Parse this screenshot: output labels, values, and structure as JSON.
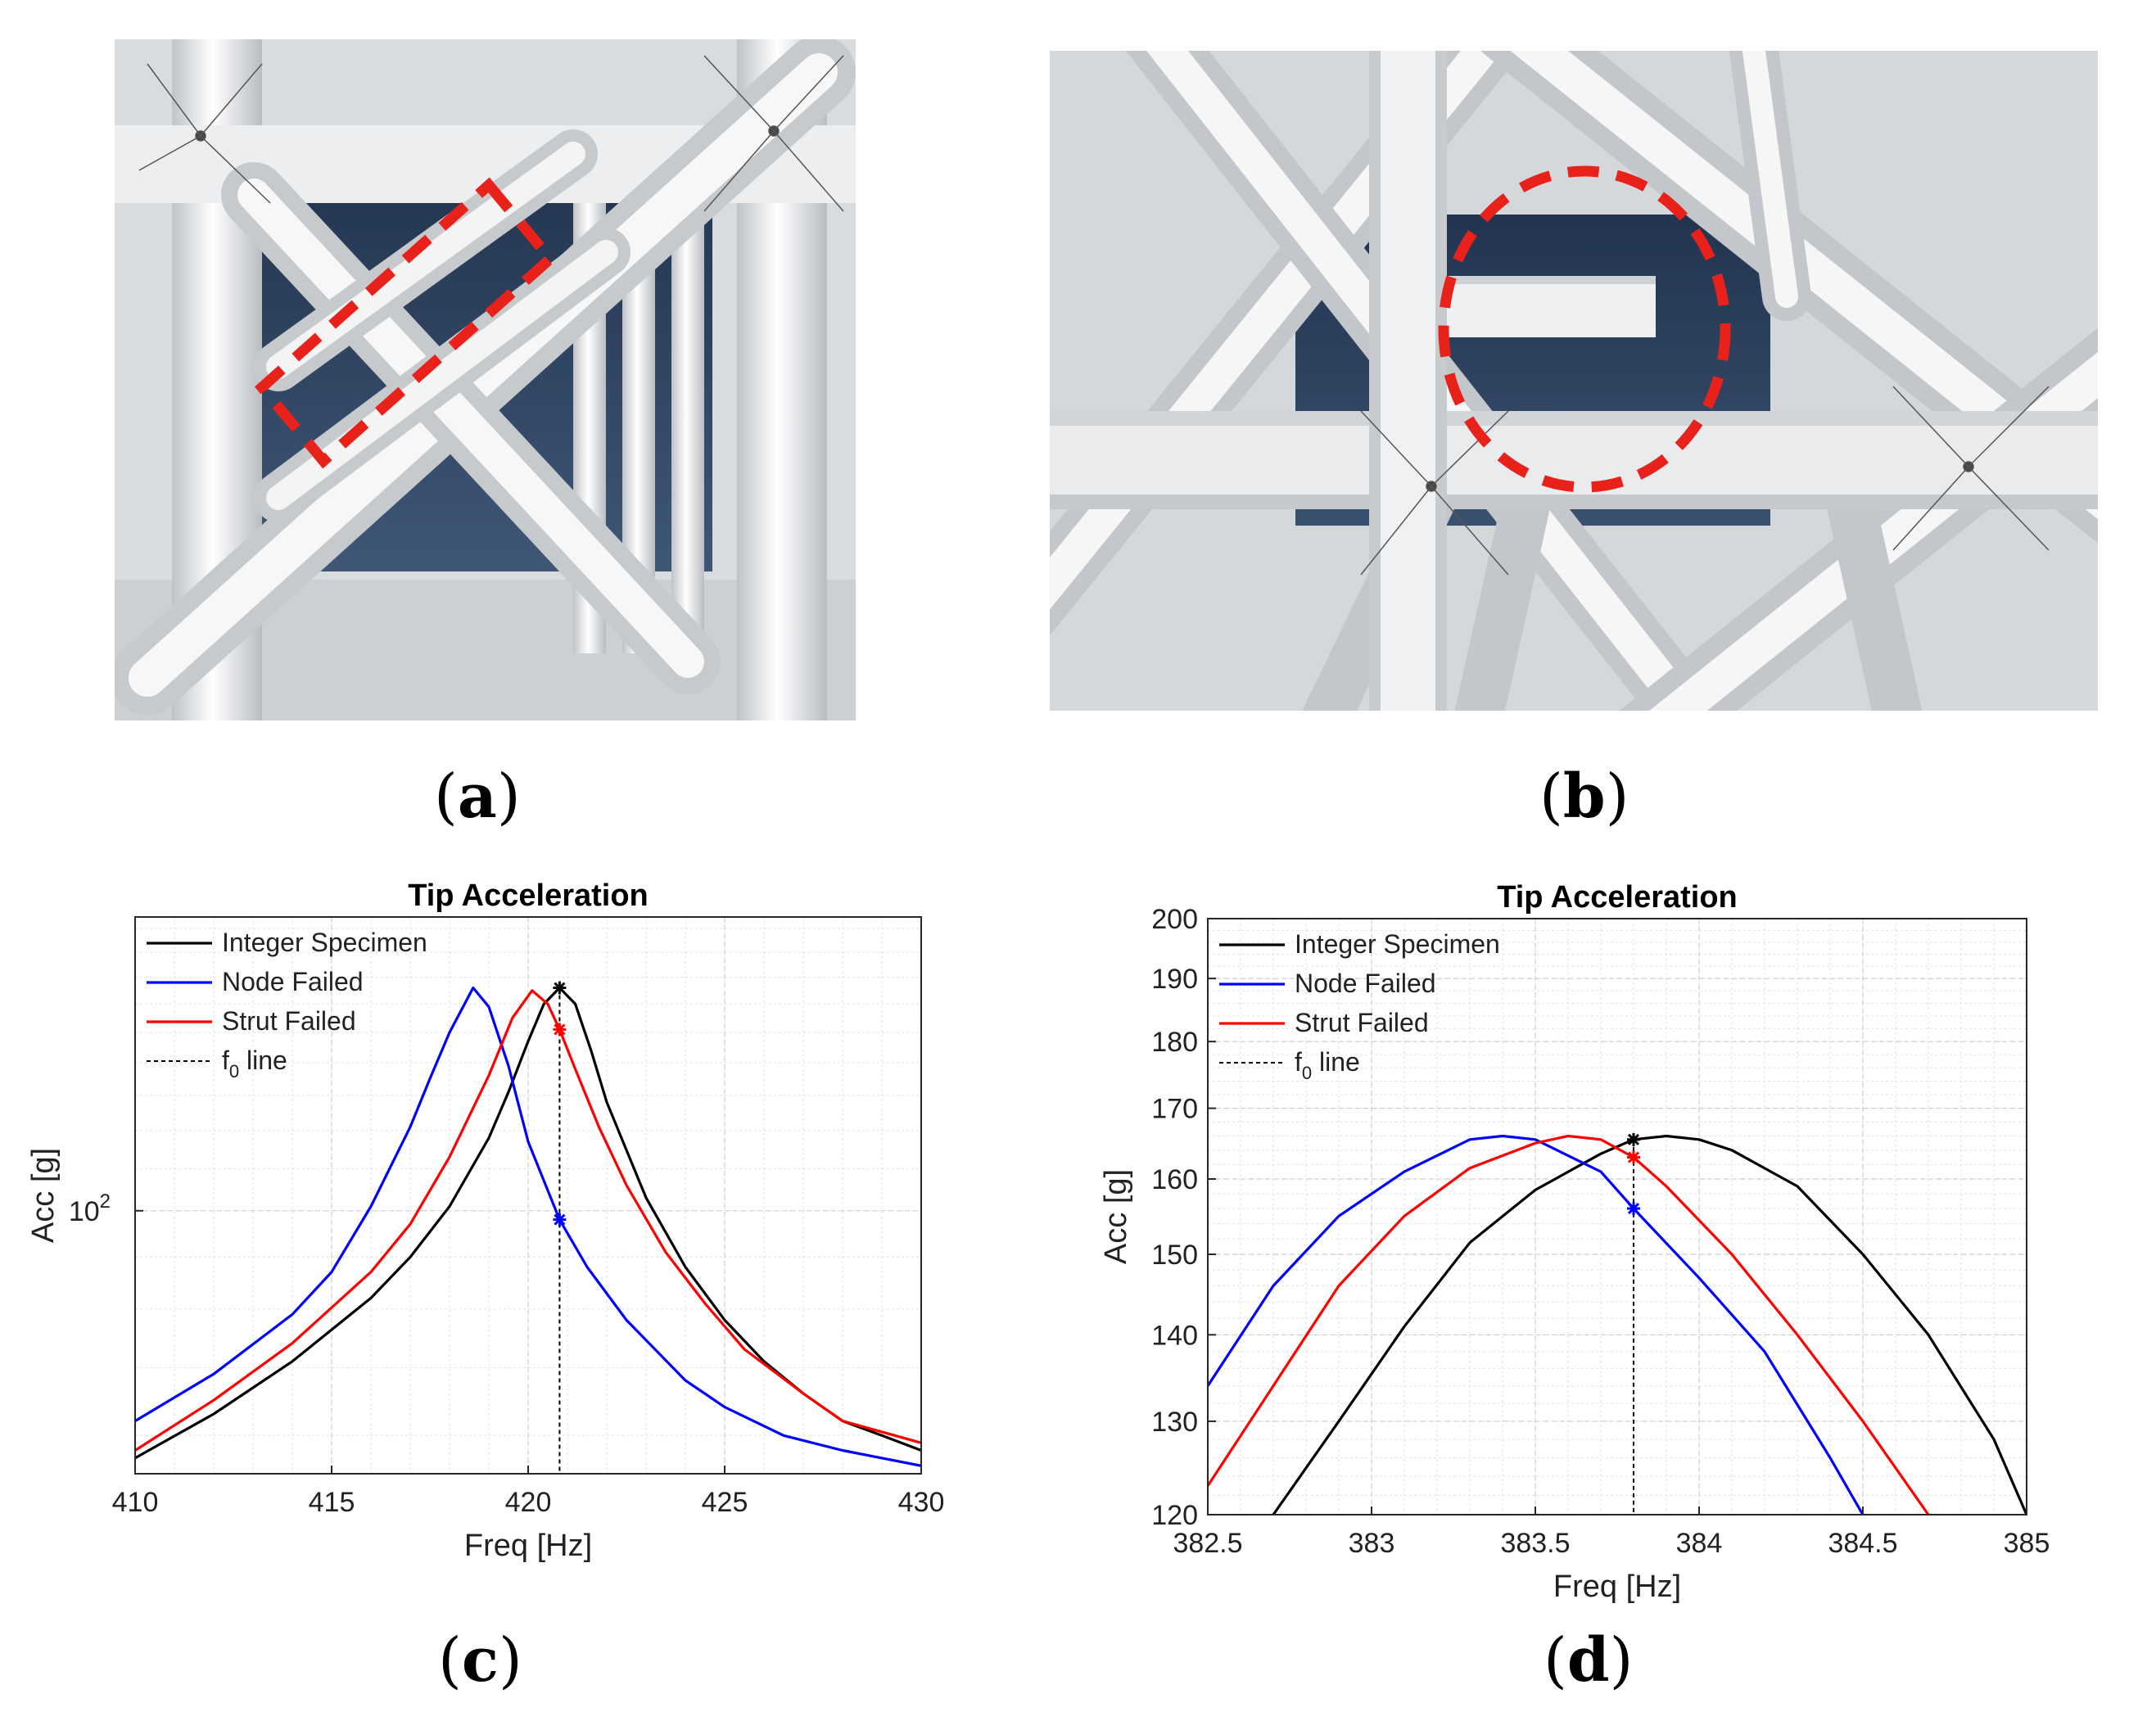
{
  "panels": {
    "a": {
      "label": "a"
    },
    "b": {
      "label": "b"
    },
    "c": {
      "label": "c"
    },
    "d": {
      "label": "d"
    }
  },
  "colors": {
    "integer": "#000000",
    "node": "#0000ff",
    "strut": "#ff0000",
    "highlight": "#e8211b"
  },
  "chart_data": [
    {
      "id": "c",
      "type": "line",
      "title": "Tip Acceleration",
      "xlabel": "Freq [Hz]",
      "ylabel": "Acc [g]",
      "xlim": [
        410,
        430
      ],
      "xticks": [
        410,
        415,
        420,
        425,
        430
      ],
      "yscale": "log",
      "ylim": [
        55,
        195
      ],
      "yticks": [
        {
          "value": 100,
          "base": "10",
          "exp": "2"
        }
      ],
      "grid": true,
      "legend_position": "top-left",
      "f0": 420.8,
      "series": [
        {
          "name": "Integer Specimen",
          "color": "#000000",
          "points": [
            [
              410,
              57
            ],
            [
              412,
              63
            ],
            [
              414,
              71
            ],
            [
              416,
              82
            ],
            [
              417,
              90
            ],
            [
              418,
              101
            ],
            [
              419,
              118
            ],
            [
              419.5,
              131
            ],
            [
              420,
              147
            ],
            [
              420.4,
              160
            ],
            [
              420.8,
              166
            ],
            [
              421.2,
              160
            ],
            [
              421.6,
              144
            ],
            [
              422,
              128
            ],
            [
              423,
              103
            ],
            [
              424,
              88
            ],
            [
              425,
              78
            ],
            [
              426,
              71
            ],
            [
              427,
              66
            ],
            [
              428,
              62
            ],
            [
              429,
              60
            ],
            [
              430,
              58
            ]
          ],
          "markers": [
            [
              420.8,
              166
            ]
          ]
        },
        {
          "name": "Node Failed",
          "color": "#0000ff",
          "points": [
            [
              410,
              62
            ],
            [
              412,
              69
            ],
            [
              414,
              79
            ],
            [
              415,
              87
            ],
            [
              416,
              101
            ],
            [
              417,
              121
            ],
            [
              417.5,
              135
            ],
            [
              418,
              150
            ],
            [
              418.6,
              166
            ],
            [
              419,
              159
            ],
            [
              419.5,
              139
            ],
            [
              420,
              117
            ],
            [
              420.8,
              98
            ],
            [
              421.5,
              88
            ],
            [
              422.5,
              78
            ],
            [
              424,
              68
            ],
            [
              425,
              64
            ],
            [
              426.5,
              60
            ],
            [
              428,
              58
            ],
            [
              430,
              56
            ]
          ],
          "markers": [
            [
              420.8,
              98
            ]
          ]
        },
        {
          "name": "Strut Failed",
          "color": "#ff0000",
          "points": [
            [
              410,
              58
            ],
            [
              412,
              65
            ],
            [
              414,
              74
            ],
            [
              416,
              87
            ],
            [
              417,
              97
            ],
            [
              418,
              113
            ],
            [
              419,
              136
            ],
            [
              419.6,
              155
            ],
            [
              420.1,
              165
            ],
            [
              420.5,
              160
            ],
            [
              420.8,
              151
            ],
            [
              421.2,
              138
            ],
            [
              421.8,
              121
            ],
            [
              422.5,
              106
            ],
            [
              423.5,
              91
            ],
            [
              424.5,
              81
            ],
            [
              425.5,
              73
            ],
            [
              427,
              66
            ],
            [
              428,
              62
            ],
            [
              430,
              59
            ]
          ],
          "markers": [
            [
              420.8,
              151
            ]
          ]
        },
        {
          "name": "f0 line",
          "label_base": "f",
          "label_sub": "0",
          "label_rest": " line",
          "color": "#000000",
          "dashed": true
        }
      ]
    },
    {
      "id": "d",
      "type": "line",
      "title": "Tip Acceleration",
      "xlabel": "Freq [Hz]",
      "ylabel": "Acc [g]",
      "xlim": [
        382.5,
        385
      ],
      "xticks": [
        382.5,
        383,
        383.5,
        384,
        384.5,
        385
      ],
      "xtick_labels": [
        "382.5",
        "383",
        "383.5",
        "384",
        "384.5",
        "385"
      ],
      "yscale": "log",
      "ylim": [
        120,
        200
      ],
      "yticks": [
        {
          "value": 120,
          "label": "120"
        },
        {
          "value": 130,
          "label": "130"
        },
        {
          "value": 140,
          "label": "140"
        },
        {
          "value": 150,
          "label": "150"
        },
        {
          "value": 160,
          "label": "160"
        },
        {
          "value": 170,
          "label": "170"
        },
        {
          "value": 180,
          "label": "180"
        },
        {
          "value": 190,
          "label": "190"
        },
        {
          "value": 200,
          "label": "200"
        }
      ],
      "grid": true,
      "legend_position": "top-left",
      "f0": 383.8,
      "series": [
        {
          "name": "Integer Specimen",
          "color": "#000000",
          "points": [
            [
              382.7,
              120
            ],
            [
              382.9,
              130
            ],
            [
              383.1,
              141
            ],
            [
              383.3,
              151.5
            ],
            [
              383.5,
              158.5
            ],
            [
              383.7,
              163.5
            ],
            [
              383.8,
              165.5
            ],
            [
              383.9,
              166
            ],
            [
              384.0,
              165.5
            ],
            [
              384.1,
              164
            ],
            [
              384.3,
              159
            ],
            [
              384.5,
              150
            ],
            [
              384.7,
              140
            ],
            [
              384.9,
              128
            ],
            [
              385,
              120
            ]
          ],
          "markers": [
            [
              383.8,
              165.5
            ]
          ]
        },
        {
          "name": "Node Failed",
          "color": "#0000ff",
          "points": [
            [
              382.5,
              134
            ],
            [
              382.7,
              146
            ],
            [
              382.9,
              155
            ],
            [
              383.1,
              161
            ],
            [
              383.3,
              165.5
            ],
            [
              383.4,
              166
            ],
            [
              383.5,
              165.5
            ],
            [
              383.7,
              161
            ],
            [
              383.8,
              156
            ],
            [
              384.0,
              147
            ],
            [
              384.2,
              138
            ],
            [
              384.4,
              126
            ],
            [
              384.5,
              120
            ]
          ],
          "markers": [
            [
              383.8,
              156
            ]
          ]
        },
        {
          "name": "Strut Failed",
          "color": "#ff0000",
          "points": [
            [
              382.5,
              123
            ],
            [
              382.7,
              134
            ],
            [
              382.9,
              146
            ],
            [
              383.1,
              155
            ],
            [
              383.3,
              161.5
            ],
            [
              383.5,
              165
            ],
            [
              383.6,
              166
            ],
            [
              383.7,
              165.5
            ],
            [
              383.8,
              163
            ],
            [
              383.9,
              159
            ],
            [
              384.1,
              150
            ],
            [
              384.3,
              140
            ],
            [
              384.5,
              130
            ],
            [
              384.7,
              120
            ]
          ],
          "markers": [
            [
              383.8,
              163
            ]
          ]
        },
        {
          "name": "f0 line",
          "label_base": "f",
          "label_sub": "0",
          "label_rest": " line",
          "color": "#000000",
          "dashed": true
        }
      ]
    }
  ]
}
